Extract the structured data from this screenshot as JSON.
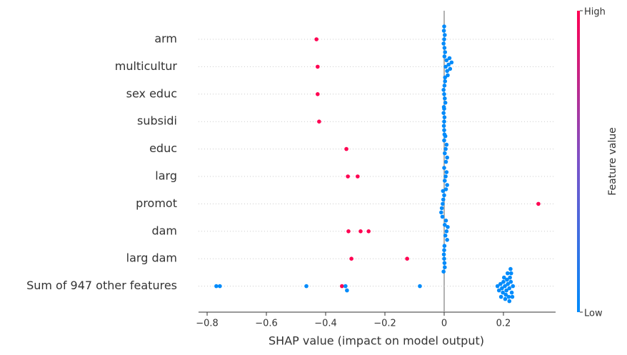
{
  "chart_data": {
    "type": "beeswarm",
    "xlabel": "SHAP value (impact on model output)",
    "categories": [
      "arm",
      "multicultur",
      "sex educ",
      "subsidi",
      "educ",
      "larg",
      "promot",
      "dam",
      "larg dam",
      "Sum of 947 other features"
    ],
    "values": [
      [
        -0.431,
        0,
        -0.002,
        0.002,
        0.001,
        -0.001,
        0.003,
        0,
        0.001
      ],
      [
        -0.427,
        0.005,
        0.01,
        0.015,
        0.02,
        0.025,
        0.008,
        0.012,
        0.018,
        0.003
      ],
      [
        -0.427,
        0,
        0.002,
        -0.002,
        0.004,
        0.001,
        -0.001,
        0.003
      ],
      [
        -0.422,
        0,
        -0.001,
        0.001,
        0,
        -0.002,
        0.001,
        0
      ],
      [
        -0.33,
        0.005,
        0.002,
        0.008,
        0.01,
        0,
        0.006,
        0.004
      ],
      [
        -0.325,
        -0.292,
        0.005,
        0.002,
        0.008,
        0.01,
        0,
        0.006
      ],
      [
        0.318,
        -0.005,
        -0.008,
        -0.003,
        -0.01,
        0,
        -0.006,
        -0.004
      ],
      [
        -0.323,
        -0.282,
        -0.255,
        0.008,
        0.004,
        0.012,
        0.01,
        0.002,
        0.006
      ],
      [
        -0.313,
        -0.125,
        0,
        0.001,
        -0.001,
        0.002,
        0,
        -0.002,
        0.001
      ],
      [
        -0.769,
        -0.757,
        -0.465,
        -0.345,
        -0.333,
        -0.328,
        -0.082,
        0.18,
        0.185,
        0.19,
        0.195,
        0.2,
        0.205,
        0.21,
        0.215,
        0.22,
        0.225,
        0.228,
        0.232,
        0.198,
        0.202,
        0.208,
        0.212,
        0.218,
        0.222,
        0.226,
        0.23,
        0.192,
        0.214,
        0.22,
        0.206,
        0.224
      ]
    ],
    "color_values": [
      [
        1,
        0,
        0,
        0,
        0,
        0,
        0,
        0,
        0
      ],
      [
        1,
        0,
        0,
        0,
        0,
        0,
        0,
        0,
        0,
        0
      ],
      [
        1,
        0,
        0,
        0,
        0,
        0,
        0,
        0
      ],
      [
        1,
        0,
        0,
        0,
        0,
        0,
        0,
        0
      ],
      [
        1,
        0,
        0,
        0,
        0,
        0,
        0,
        0
      ],
      [
        1,
        1,
        0,
        0,
        0,
        0,
        0,
        0
      ],
      [
        1,
        0,
        0,
        0,
        0,
        0,
        0,
        0
      ],
      [
        1,
        1,
        1,
        0,
        0,
        0,
        0,
        0,
        0
      ],
      [
        1,
        1,
        0,
        0,
        0,
        0,
        0,
        0,
        0
      ],
      [
        0,
        0,
        0,
        1,
        0,
        0,
        0,
        0,
        0,
        0,
        0,
        0,
        0,
        0,
        0,
        0,
        0,
        0,
        0,
        0,
        0,
        0,
        0,
        0,
        0,
        0,
        0,
        0,
        0,
        0,
        0,
        0
      ]
    ],
    "xlim": [
      -0.829,
      0.376
    ],
    "xticks": [
      {
        "value": -0.8,
        "label": "−0.8"
      },
      {
        "value": -0.6,
        "label": "−0.6"
      },
      {
        "value": -0.4,
        "label": "−0.4"
      },
      {
        "value": -0.2,
        "label": "−0.2"
      },
      0.0,
      0.2
    ],
    "colors": [
      "#008bfb",
      "#ff0052"
    ],
    "colorbar": {
      "label": "Feature value",
      "clim": [
        0,
        1
      ],
      "ticks": [
        {
          "value": 0,
          "label": "Low"
        },
        {
          "value": 1,
          "label": "High"
        }
      ]
    }
  }
}
